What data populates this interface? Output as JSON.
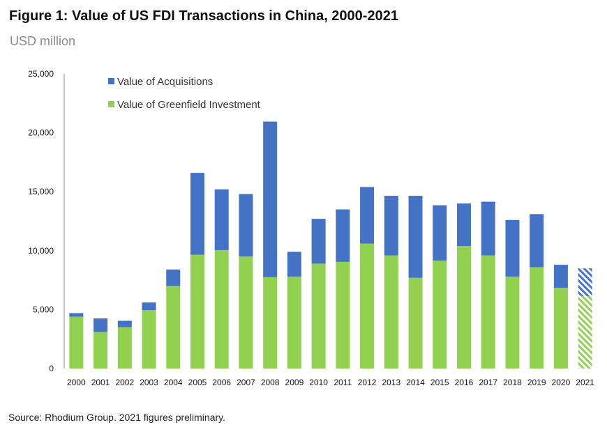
{
  "title": "Figure 1: Value of US FDI Transactions in China, 2000-2021",
  "subtitle": "USD million",
  "source": "Source: Rhodium Group. 2021 figures preliminary.",
  "colors": {
    "acquisitions": "#4472c4",
    "greenfield": "#92d050",
    "axis": "#888888"
  },
  "chart_data": {
    "type": "bar",
    "stacked": true,
    "categories": [
      "2000",
      "2001",
      "2002",
      "2003",
      "2004",
      "2005",
      "2006",
      "2007",
      "2008",
      "2009",
      "2010",
      "2011",
      "2012",
      "2013",
      "2014",
      "2015",
      "2016",
      "2017",
      "2018",
      "2019",
      "2020",
      "2021"
    ],
    "series": [
      {
        "name": "Value of Greenfield Investment",
        "values": [
          4400,
          3100,
          3500,
          4950,
          7000,
          9650,
          10050,
          9500,
          7750,
          7800,
          8900,
          9050,
          10600,
          9600,
          7700,
          9150,
          10400,
          9600,
          7800,
          8600,
          6850,
          6150
        ]
      },
      {
        "name": "Value of Acquisitions",
        "values": [
          300,
          1150,
          550,
          650,
          1400,
          6950,
          5150,
          5300,
          13200,
          2100,
          3800,
          4450,
          4800,
          5050,
          6950,
          4700,
          3600,
          4550,
          4800,
          4500,
          1950,
          2350
        ]
      }
    ],
    "preliminary": [
      "2021"
    ],
    "ylim": [
      0,
      25000
    ],
    "yticks": [
      0,
      5000,
      10000,
      15000,
      20000,
      25000
    ],
    "ytick_labels": [
      "0",
      "5,000",
      "10,000",
      "15,000",
      "20,000",
      "25,000"
    ],
    "xlabel": "",
    "ylabel": "",
    "legend_position": "top-left"
  }
}
